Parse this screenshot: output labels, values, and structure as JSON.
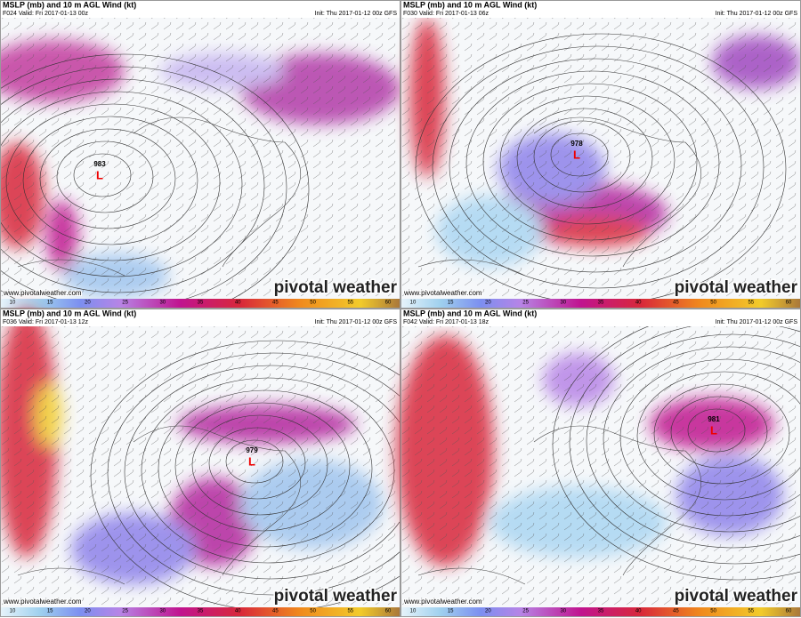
{
  "panels": [
    {
      "title": "MSLP (mb) and 10 m AGL Wind (kt)",
      "valid": "F024 Valid: Fri 2017-01-13 00z",
      "init": "Init: Thu 2017-01-12 00z GFS",
      "low_pressure": "983",
      "low_symbol": "L",
      "website": "www.pivotalweather.com",
      "logo": "pivotal weather"
    },
    {
      "title": "MSLP (mb) and 10 m AGL Wind (kt)",
      "valid": "F030 Valid: Fri 2017-01-13 06z",
      "init": "Init: Thu 2017-01-12 00z GFS",
      "low_pressure": "978",
      "low_symbol": "L",
      "website": "www.pivotalweather.com",
      "logo": "pivotal weather"
    },
    {
      "title": "MSLP (mb) and 10 m AGL Wind (kt)",
      "valid": "F036 Valid: Fri 2017-01-13 12z",
      "init": "Init: Thu 2017-01-12 00z GFS",
      "low_pressure": "979",
      "low_symbol": "L",
      "website": "www.pivotalweather.com",
      "logo": "pivotal weather"
    },
    {
      "title": "MSLP (mb) and 10 m AGL Wind (kt)",
      "valid": "F042 Valid: Fri 2017-01-13 18z",
      "init": "Init: Thu 2017-01-12 00z GFS",
      "low_pressure": "981",
      "low_symbol": "L",
      "website": "www.pivotalweather.com",
      "logo": "pivotal weather"
    }
  ],
  "colorbar": {
    "ticks": [
      10,
      15,
      20,
      25,
      30,
      35,
      40,
      45,
      50,
      55,
      60
    ]
  }
}
